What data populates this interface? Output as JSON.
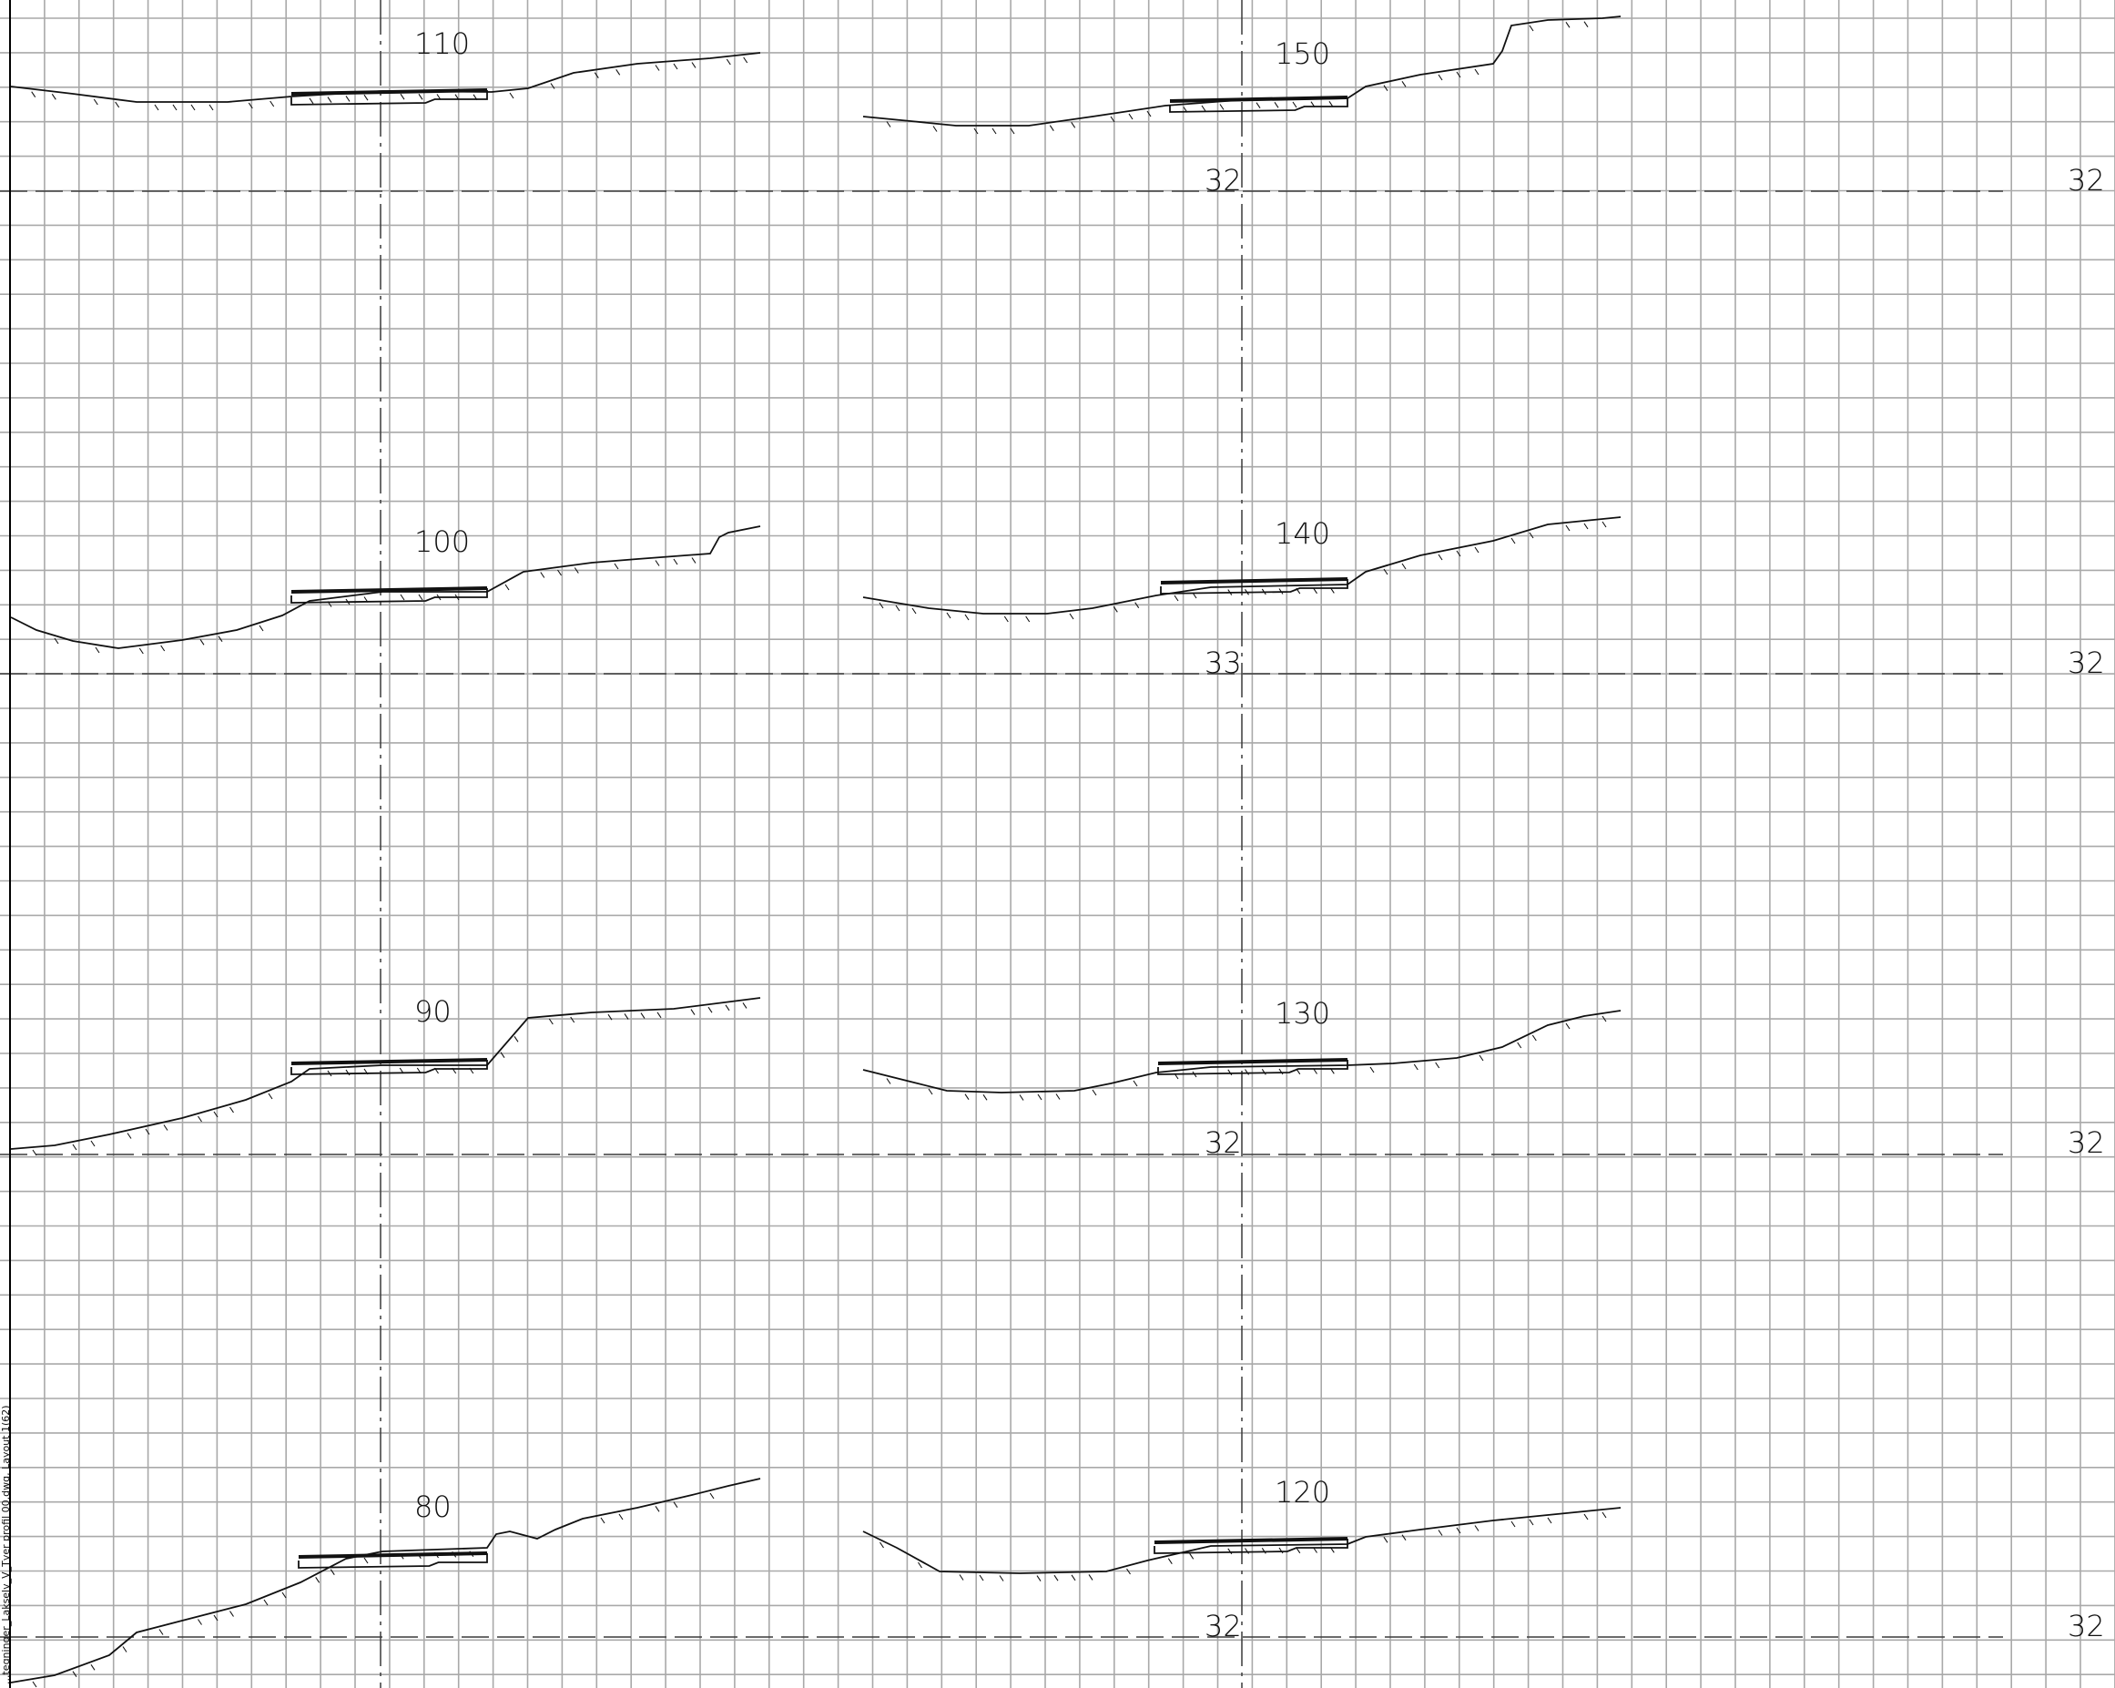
{
  "drawing": {
    "sheet_note": "...tegninger_Lakselv_V_Tver profil 00.dwg, Layout 1(62)",
    "colors": {
      "grid": "#a9a9a9",
      "line": "#111111",
      "axis": "#3a3a3a"
    },
    "sections": [
      {
        "station": "110",
        "elevation_label": ""
      },
      {
        "station": "100",
        "elevation_label": ""
      },
      {
        "station": "90",
        "elevation_label": ""
      },
      {
        "station": "80",
        "elevation_label": ""
      },
      {
        "station": "150",
        "elevation_label": "32"
      },
      {
        "station": "140",
        "elevation_label": "33"
      },
      {
        "station": "130",
        "elevation_label": "32"
      },
      {
        "station": "120",
        "elevation_label": "32"
      }
    ],
    "right_margin_elevations": [
      "32",
      "32",
      "32",
      "32"
    ]
  }
}
